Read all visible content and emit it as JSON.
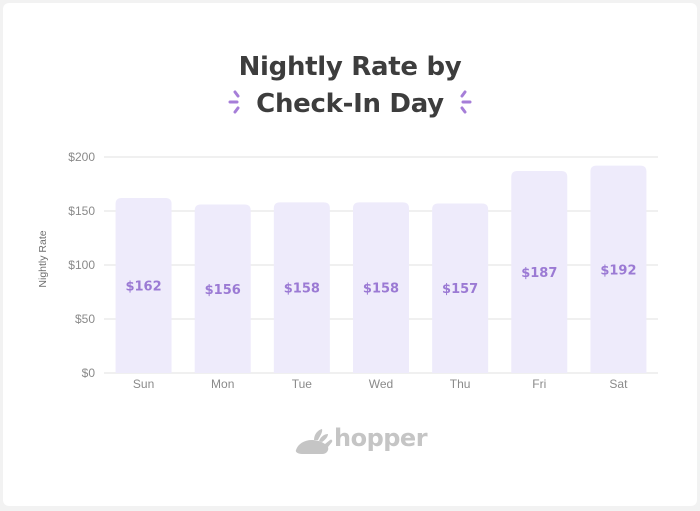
{
  "title_line1": "Nightly Rate by",
  "title_line2": "Check-In Day",
  "brand": "hopper",
  "colors": {
    "bar": "#eeebfb",
    "label": "#9b7ad4",
    "accent": "#a67ed8",
    "grid": "#e1e1e1"
  },
  "chart_data": {
    "type": "bar",
    "title": "Nightly Rate by Check-In Day",
    "ylabel": "Nightly Rate",
    "xlabel": "",
    "categories": [
      "Sun",
      "Mon",
      "Tue",
      "Wed",
      "Thu",
      "Fri",
      "Sat"
    ],
    "values": [
      162,
      156,
      158,
      158,
      157,
      187,
      192
    ],
    "data_labels": [
      "$162",
      "$156",
      "$158",
      "$158",
      "$157",
      "$187",
      "$192"
    ],
    "ylim": [
      0,
      200
    ],
    "yticks": [
      0,
      50,
      100,
      150,
      200
    ],
    "ytick_labels": [
      "$0",
      "$50",
      "$100",
      "$150",
      "$200"
    ],
    "grid": true
  }
}
